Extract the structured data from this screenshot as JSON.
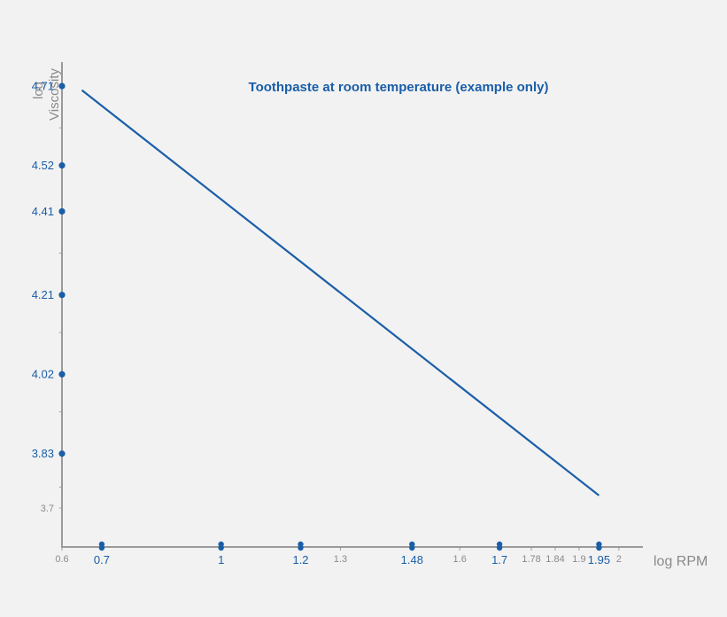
{
  "chart_data": {
    "type": "line",
    "title": "Toothpaste at room temperature (example only)",
    "xlabel": "log RPM",
    "ylabel_line1": "log",
    "ylabel_line2": "Viscosity",
    "xlim": [
      0.6,
      2.0
    ],
    "ylim": [
      3.7,
      4.71
    ],
    "grid": false,
    "series": [
      {
        "values": [
          [
            0.65,
            4.7
          ],
          [
            1.95,
            3.73
          ]
        ]
      }
    ],
    "x_ticks_labeled": [
      "0.6",
      "0.7",
      "1",
      "1.2",
      "1.3",
      "1.48",
      "1.6",
      "1.7",
      "1.78",
      "1.84",
      "1.9",
      "1.95",
      "2"
    ],
    "x_ticks_highlight": [
      "0.7",
      "1",
      "1.2",
      "1.48",
      "1.7",
      "1.95"
    ],
    "y_ticks_labeled": [
      "3.7",
      "3.83",
      "4.02",
      "4.21",
      "4.41",
      "4.52",
      "4.71"
    ],
    "y_ticks_highlight": [
      "3.83",
      "4.02",
      "4.21",
      "4.41",
      "4.52",
      "4.71"
    ],
    "colors": {
      "line": "#1a5ea8",
      "axis": "#9a9a9a",
      "highlight": "#1a5ea8",
      "muted_text": "#8a8a8a",
      "background": "#f2f2f2"
    }
  }
}
